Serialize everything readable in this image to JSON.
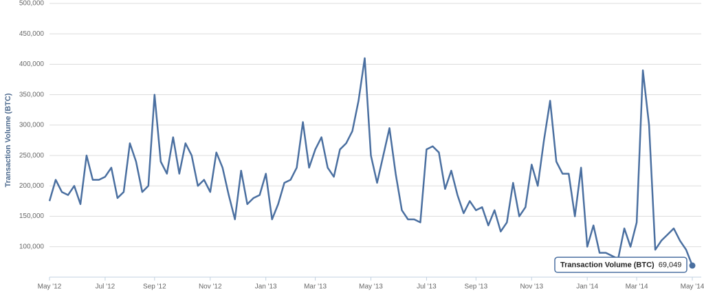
{
  "chart_data": {
    "type": "line",
    "ylabel": "Transaction Volume (BTC)",
    "categories": [
      "May '12",
      null,
      null,
      null,
      null,
      null,
      null,
      null,
      null,
      "Jul '12",
      null,
      null,
      null,
      null,
      null,
      null,
      null,
      "Sep '12",
      null,
      null,
      null,
      null,
      null,
      null,
      null,
      null,
      "Nov '12",
      null,
      null,
      null,
      null,
      null,
      null,
      null,
      null,
      "Jan '13",
      null,
      null,
      null,
      null,
      null,
      null,
      null,
      "Mar '13",
      null,
      null,
      null,
      null,
      null,
      null,
      null,
      null,
      "May '13",
      null,
      null,
      null,
      null,
      null,
      null,
      null,
      null,
      "Jul '13",
      null,
      null,
      null,
      null,
      null,
      null,
      null,
      "Sep '13",
      null,
      null,
      null,
      null,
      null,
      null,
      null,
      null,
      "Nov '13",
      null,
      null,
      null,
      null,
      null,
      null,
      null,
      null,
      "Jan '14",
      null,
      null,
      null,
      null,
      null,
      null,
      null,
      "Mar '14",
      null,
      null,
      null,
      null,
      null,
      null,
      null,
      null,
      "May '14"
    ],
    "series": [
      {
        "name": "Transaction Volume (BTC)",
        "color": "#4a6fa0",
        "values": [
          175000,
          210000,
          190000,
          185000,
          200000,
          170000,
          250000,
          210000,
          210000,
          215000,
          230000,
          180000,
          190000,
          270000,
          240000,
          190000,
          200000,
          350000,
          240000,
          220000,
          280000,
          220000,
          270000,
          250000,
          200000,
          210000,
          190000,
          255000,
          230000,
          185000,
          145000,
          225000,
          170000,
          180000,
          185000,
          220000,
          145000,
          170000,
          205000,
          210000,
          230000,
          305000,
          230000,
          260000,
          280000,
          230000,
          215000,
          260000,
          270000,
          290000,
          340000,
          410000,
          250000,
          205000,
          250000,
          295000,
          220000,
          160000,
          145000,
          145000,
          140000,
          260000,
          265000,
          255000,
          195000,
          225000,
          185000,
          155000,
          175000,
          160000,
          165000,
          135000,
          160000,
          125000,
          140000,
          205000,
          150000,
          165000,
          235000,
          200000,
          275000,
          340000,
          240000,
          220000,
          220000,
          150000,
          230000,
          100000,
          135000,
          90000,
          90000,
          85000,
          80000,
          130000,
          100000,
          140000,
          390000,
          300000,
          95000,
          110000,
          120000,
          130000,
          110000,
          95000,
          69049
        ]
      }
    ],
    "tooltip": {
      "title": "Transaction Volume (BTC)",
      "value": "69,049"
    },
    "ylim": [
      50000,
      500000
    ],
    "yticks": [
      {
        "value": 100000,
        "label": "100,000"
      },
      {
        "value": 150000,
        "label": "150,000"
      },
      {
        "value": 200000,
        "label": "200,000"
      },
      {
        "value": 250000,
        "label": "250,000"
      },
      {
        "value": 300000,
        "label": "300,000"
      },
      {
        "value": 350000,
        "label": "350,000"
      },
      {
        "value": 400000,
        "label": "400,000"
      },
      {
        "value": 450000,
        "label": "450,000"
      },
      {
        "value": 500000,
        "label": "500,000"
      }
    ],
    "grid": true
  }
}
